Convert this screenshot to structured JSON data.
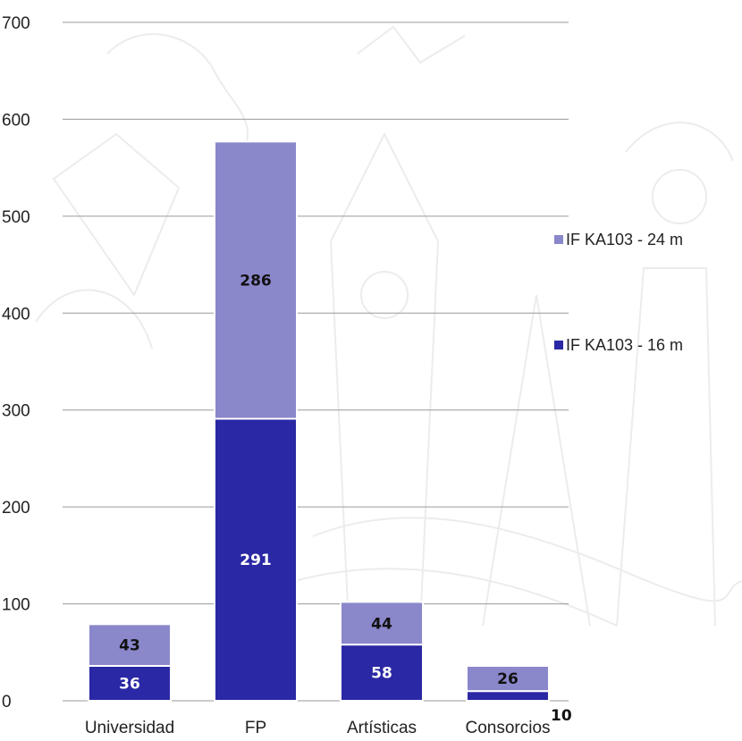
{
  "chart_data": {
    "type": "bar",
    "stacked": true,
    "categories": [
      "Universidad",
      "FP",
      "Artísticas",
      "Consorcios"
    ],
    "series": [
      {
        "name": "IF KA103 - 16 m",
        "values": [
          36,
          291,
          58,
          10
        ],
        "color": "#2a28a4"
      },
      {
        "name": "IF KA103 - 24 m",
        "values": [
          43,
          286,
          44,
          26
        ],
        "color": "#8a87cb"
      }
    ],
    "ylim": [
      0,
      700
    ],
    "yticks": [
      "0",
      "100",
      "200",
      "300",
      "400",
      "500",
      "600",
      "700"
    ],
    "grid": true,
    "legend_position": "right",
    "title": "",
    "xlabel": "",
    "ylabel": ""
  }
}
